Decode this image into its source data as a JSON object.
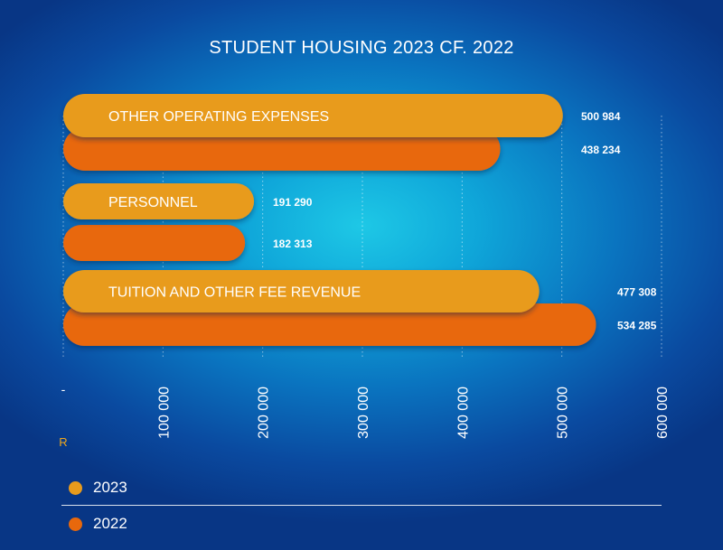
{
  "chart_data": {
    "type": "bar",
    "orientation": "horizontal",
    "title": "STUDENT HOUSING 2023 CF. 2022",
    "categories": [
      "OTHER OPERATING EXPENSES",
      "PERSONNEL",
      "TUITION AND OTHER FEE REVENUE"
    ],
    "series": [
      {
        "name": "2023",
        "color": "#e89b1c",
        "values": [
          500984,
          191290,
          477308
        ],
        "labels": [
          "500 984",
          "191 290",
          "477 308"
        ]
      },
      {
        "name": "2022",
        "color": "#e8680c",
        "values": [
          438234,
          182313,
          534285
        ],
        "labels": [
          "438 234",
          "182 313",
          "534 285"
        ]
      }
    ],
    "xlim": [
      0,
      600000
    ],
    "x_ticks": [
      0,
      100000,
      200000,
      300000,
      400000,
      500000,
      600000
    ],
    "x_tick_labels": [
      "-",
      "100 000",
      "200 000",
      "300 000",
      "400 000",
      "500 000",
      "600 000"
    ],
    "x_unit_label": "R",
    "grid": "dotted vertical",
    "legend_position": "bottom-left"
  }
}
